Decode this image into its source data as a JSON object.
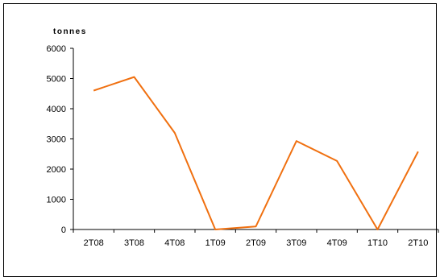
{
  "chart_data": {
    "type": "line",
    "ylabel": "tonnes",
    "categories": [
      "2T08",
      "3T08",
      "4T08",
      "1T09",
      "2T09",
      "3T09",
      "4T09",
      "1T10",
      "2T10"
    ],
    "series": [
      {
        "values": [
          4600,
          5050,
          3200,
          0,
          100,
          2930,
          2270,
          0,
          2580
        ]
      }
    ],
    "yticks": [
      0,
      1000,
      2000,
      3000,
      4000,
      5000,
      6000
    ],
    "ylim": [
      0,
      6000
    ],
    "grid": false,
    "legend": "none",
    "line_color": "#f07010"
  }
}
